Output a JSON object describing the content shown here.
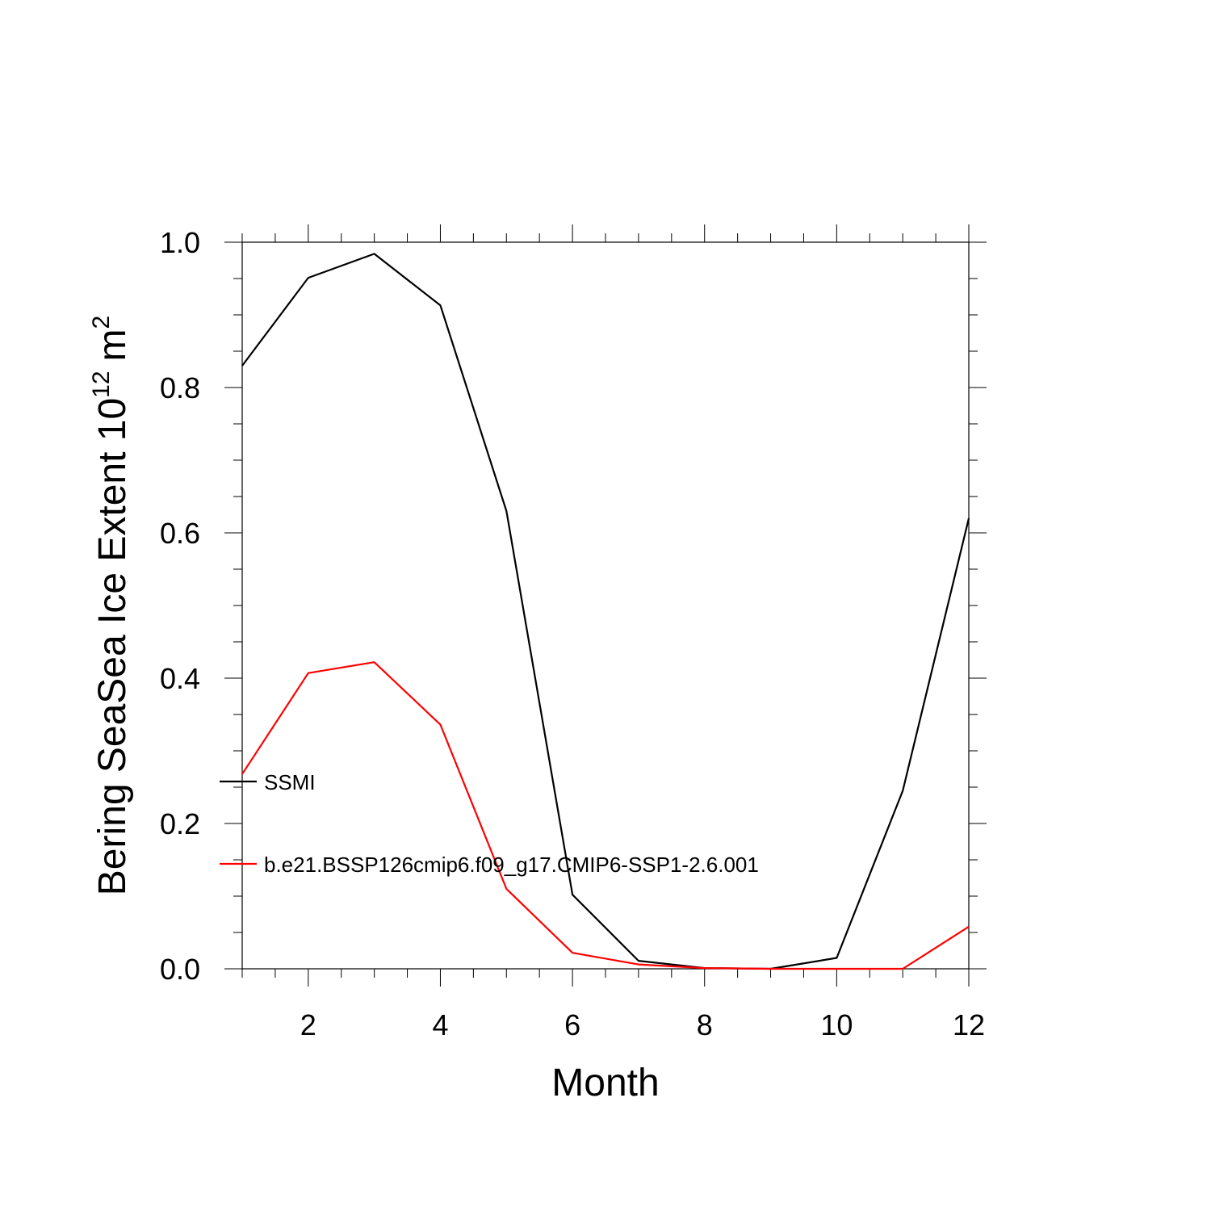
{
  "chart_data": {
    "type": "line",
    "title": "",
    "xlabel": "Month",
    "ylabel": {
      "main": "Bering SeaSea Ice Extent 10",
      "exponent": "12",
      "unit": "m",
      "unit_exponent": "2"
    },
    "xlim": [
      1,
      12
    ],
    "ylim": [
      0,
      1
    ],
    "x_ticks": [
      2,
      4,
      6,
      8,
      10,
      12
    ],
    "x_tick_labels": [
      "2",
      "4",
      "6",
      "8",
      "10",
      "12"
    ],
    "y_ticks": [
      0,
      0.2,
      0.4,
      0.6,
      0.8,
      1.0
    ],
    "y_tick_labels": [
      "0.0",
      "0.2",
      "0.4",
      "0.6",
      "0.8",
      "1.0"
    ],
    "grid": false,
    "legend_position": "left-middle",
    "x": [
      1,
      2,
      3,
      4,
      5,
      6,
      7,
      8,
      9,
      10,
      11,
      12
    ],
    "series": [
      {
        "name": "SSMI",
        "color": "#000000",
        "values": [
          0.83,
          0.951,
          0.984,
          0.913,
          0.63,
          0.102,
          0.011,
          0.001,
          0.0,
          0.015,
          0.245,
          0.62
        ]
      },
      {
        "name": "b.e21.BSSP126cmip6.f09_g17.CMIP6-SSP1-2.6.001",
        "color": "#ff0000",
        "values": [
          0.268,
          0.407,
          0.422,
          0.336,
          0.11,
          0.022,
          0.006,
          0.001,
          0.0,
          0.0,
          0.0,
          0.058
        ]
      }
    ]
  }
}
